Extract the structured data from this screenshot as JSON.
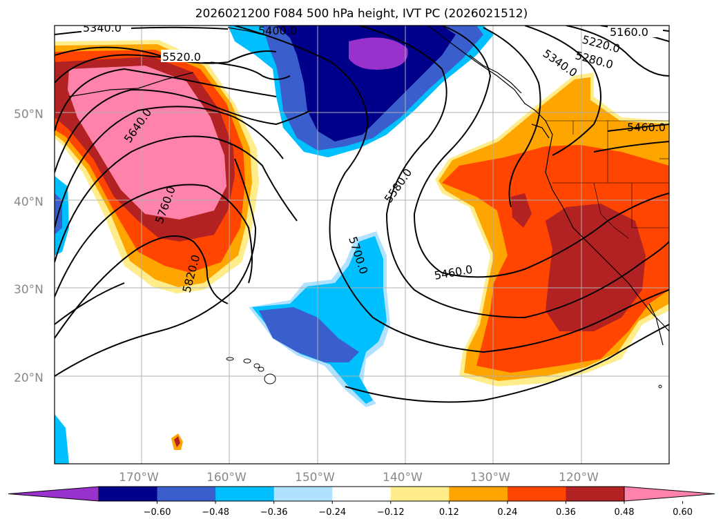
{
  "title": "2026021200 F084 500 hPa height, IVT PC (2026021512)",
  "map": {
    "lat_ticks": [
      "20°N",
      "30°N",
      "40°N",
      "50°N"
    ],
    "lon_ticks": [
      "170°W",
      "160°W",
      "150°W",
      "140°W",
      "130°W",
      "120°W"
    ],
    "contour_labels": [
      "5340.0",
      "5400.0",
      "5520.0",
      "5640.0",
      "5760.0",
      "5820.0",
      "5700.0",
      "5580.0",
      "5460.0",
      "5160.0",
      "5220.0",
      "5280.0",
      "5340.0",
      "5460.0"
    ]
  },
  "colorbar": {
    "ticks": [
      "−0.60",
      "−0.48",
      "−0.36",
      "−0.24",
      "−0.12",
      "0.12",
      "0.24",
      "0.36",
      "0.48",
      "0.60"
    ],
    "colors": [
      "#9932cc",
      "#00008b",
      "#3a5fcd",
      "#00bfff",
      "#b0e2ff",
      "#ffffff",
      "#ffec8b",
      "#ffa500",
      "#ff4500",
      "#b22222",
      "#ff82ab"
    ]
  },
  "chart_data": {
    "type": "map",
    "title": "2026021200 F084 500 hPa height, IVT PC (2026021512)",
    "variable_contours": "500 hPa geopotential height",
    "variable_fill": "IVT PC",
    "contour_levels": [
      5160.0,
      5220.0,
      5280.0,
      5340.0,
      5400.0,
      5460.0,
      5520.0,
      5580.0,
      5640.0,
      5700.0,
      5760.0,
      5820.0
    ],
    "fill_levels": [
      -0.6,
      -0.48,
      -0.36,
      -0.24,
      -0.12,
      0.12,
      0.24,
      0.36,
      0.48,
      0.6
    ],
    "lon_range": [
      -180,
      -110
    ],
    "lat_range": [
      10,
      60
    ]
  }
}
